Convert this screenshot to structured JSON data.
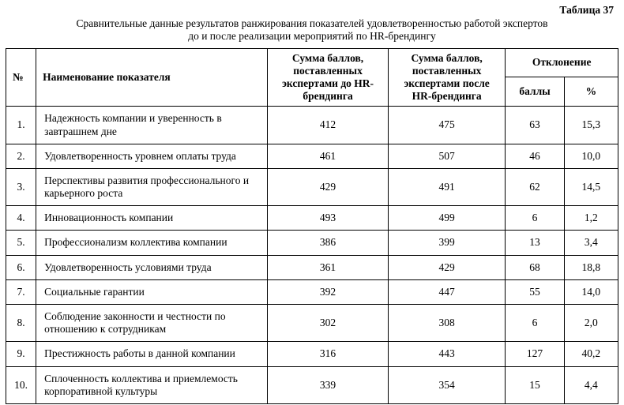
{
  "page": {
    "table_label": "Таблица 37",
    "caption_line1": "Сравнительные данные результатов ранжирования показателей удовлетворенностью работой экспертов",
    "caption_line2": "до и после реализации мероприятий по HR-брендингу"
  },
  "table": {
    "headers": {
      "num": "№",
      "name": "Наименование показателя",
      "before": "Сумма баллов, поставленных экспертами до HR-брендинга",
      "after": "Сумма баллов, поставленных экспертами после HR-брендинга",
      "deviation": "Отклонение",
      "points": "баллы",
      "percent": "%"
    },
    "rows": [
      {
        "num": "1.",
        "name": "Надежность компании и уверенность в завтрашнем дне",
        "before": "412",
        "after": "475",
        "points": "63",
        "percent": "15,3"
      },
      {
        "num": "2.",
        "name": "Удовлетворенность уровнем оплаты труда",
        "before": "461",
        "after": "507",
        "points": "46",
        "percent": "10,0"
      },
      {
        "num": "3.",
        "name": "Перспективы развития профессионального и карьерного роста",
        "before": "429",
        "after": "491",
        "points": "62",
        "percent": "14,5"
      },
      {
        "num": "4.",
        "name": "Инновационность компании",
        "before": "493",
        "after": "499",
        "points": "6",
        "percent": "1,2"
      },
      {
        "num": "5.",
        "name": "Профессионализм коллектива компании",
        "before": "386",
        "after": "399",
        "points": "13",
        "percent": "3,4"
      },
      {
        "num": "6.",
        "name": "Удовлетворенность условиями труда",
        "before": "361",
        "after": "429",
        "points": "68",
        "percent": "18,8"
      },
      {
        "num": "7.",
        "name": "Социальные гарантии",
        "before": "392",
        "after": "447",
        "points": "55",
        "percent": "14,0"
      },
      {
        "num": "8.",
        "name": "Соблюдение законности и честности по отношению к сотрудникам",
        "before": "302",
        "after": "308",
        "points": "6",
        "percent": "2,0"
      },
      {
        "num": "9.",
        "name": "Престижность работы в данной компании",
        "before": "316",
        "after": "443",
        "points": "127",
        "percent": "40,2"
      },
      {
        "num": "10.",
        "name": "Сплоченность коллектива и приемлемость корпоративной культуры",
        "before": "339",
        "after": "354",
        "points": "15",
        "percent": "4,4"
      }
    ]
  }
}
